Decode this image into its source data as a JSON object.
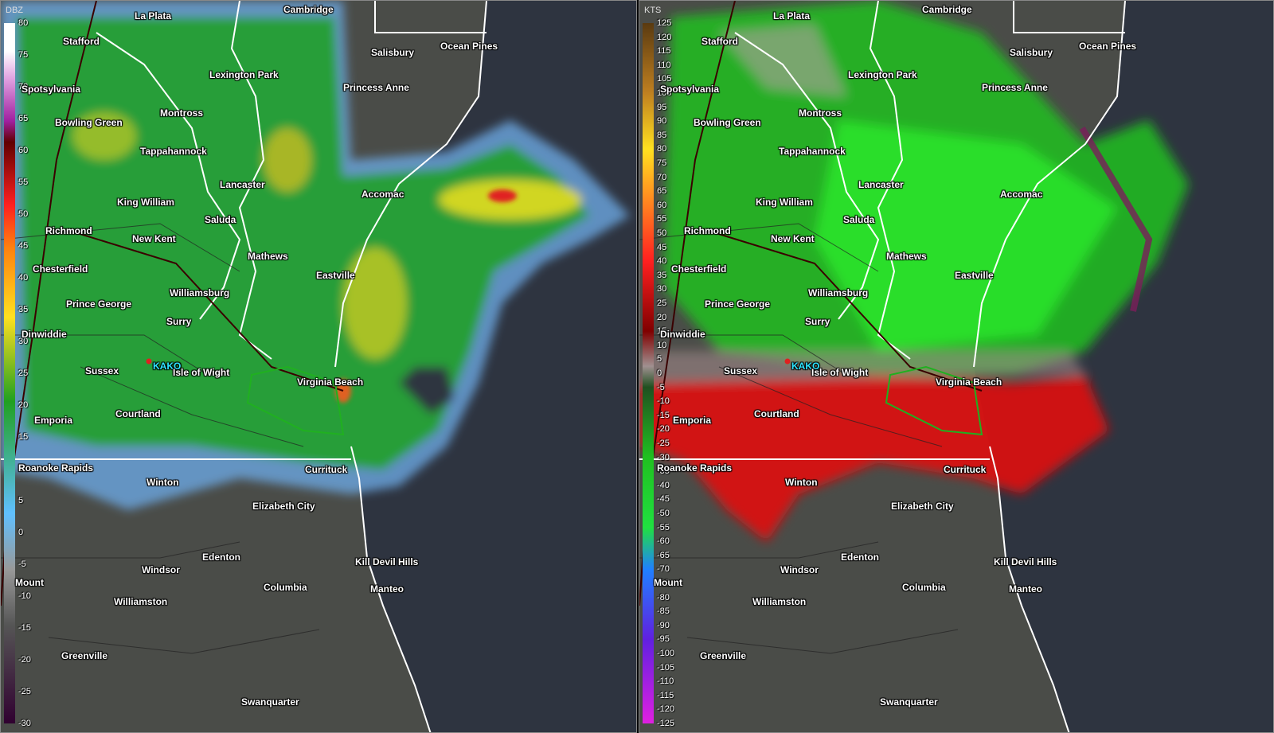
{
  "radar_site": "KAKO",
  "left_panel": {
    "units": "DBZ",
    "scale_ticks": [
      "80",
      "75",
      "70",
      "65",
      "60",
      "55",
      "50",
      "45",
      "40",
      "35",
      "30",
      "25",
      "20",
      "15",
      "10",
      "5",
      "0",
      "-5",
      "-10",
      "-15",
      "-20",
      "-25",
      "-30"
    ],
    "colors": {
      "low": "#6aa6e0",
      "mid": "#22a02a",
      "high": "#f0e020",
      "peak": "#e02020"
    }
  },
  "right_panel": {
    "units": "KTS",
    "scale_ticks": [
      "125",
      "120",
      "115",
      "110",
      "105",
      "100",
      "95",
      "90",
      "85",
      "80",
      "75",
      "70",
      "65",
      "60",
      "55",
      "50",
      "45",
      "40",
      "35",
      "30",
      "25",
      "20",
      "15",
      "10",
      "5",
      "0",
      "-5",
      "-10",
      "-15",
      "-20",
      "-25",
      "-30",
      "-35",
      "-40",
      "-45",
      "-50",
      "-55",
      "-60",
      "-65",
      "-70",
      "-75",
      "-80",
      "-85",
      "-90",
      "-95",
      "-100",
      "-105",
      "-110",
      "-115",
      "-120",
      "-125"
    ],
    "colors": {
      "inbound": "#20e020",
      "outbound": "#e01010",
      "fold": "#7a1e5a"
    }
  },
  "cities": {
    "la_plata": "La Plata",
    "cambridge": "Cambridge",
    "stafford": "Stafford",
    "salisbury": "Salisbury",
    "ocean_pines": "Ocean Pines",
    "lexington_park": "Lexington Park",
    "princess_anne": "Princess Anne",
    "spotsylvania": "Spotsylvania",
    "montross": "Montross",
    "bowling_green": "Bowling Green",
    "tappahannock": "Tappahannock",
    "lancaster": "Lancaster",
    "accomac": "Accomac",
    "king_william": "King William",
    "saluda": "Saluda",
    "richmond": "Richmond",
    "new_kent": "New Kent",
    "chesterfield": "Chesterfield",
    "mathews": "Mathews",
    "eastville": "Eastville",
    "williamsburg": "Williamsburg",
    "prince_george": "Prince George",
    "surry": "Surry",
    "dinwiddie": "Dinwiddie",
    "sussex": "Sussex",
    "isle_of_wight": "Isle of Wight",
    "virginia_beach": "Virginia Beach",
    "emporia": "Emporia",
    "courtland": "Courtland",
    "roanoke_rapids": "Roanoke Rapids",
    "winton": "Winton",
    "currituck": "Currituck",
    "elizabeth_city": "Elizabeth City",
    "edenton": "Edenton",
    "windsor": "Windsor",
    "kill_devil_hills": "Kill Devil Hills",
    "mount": "Mount",
    "columbia": "Columbia",
    "manteo": "Manteo",
    "williamston": "Williamston",
    "greenville": "Greenville",
    "swanquarter": "Swanquarter"
  }
}
